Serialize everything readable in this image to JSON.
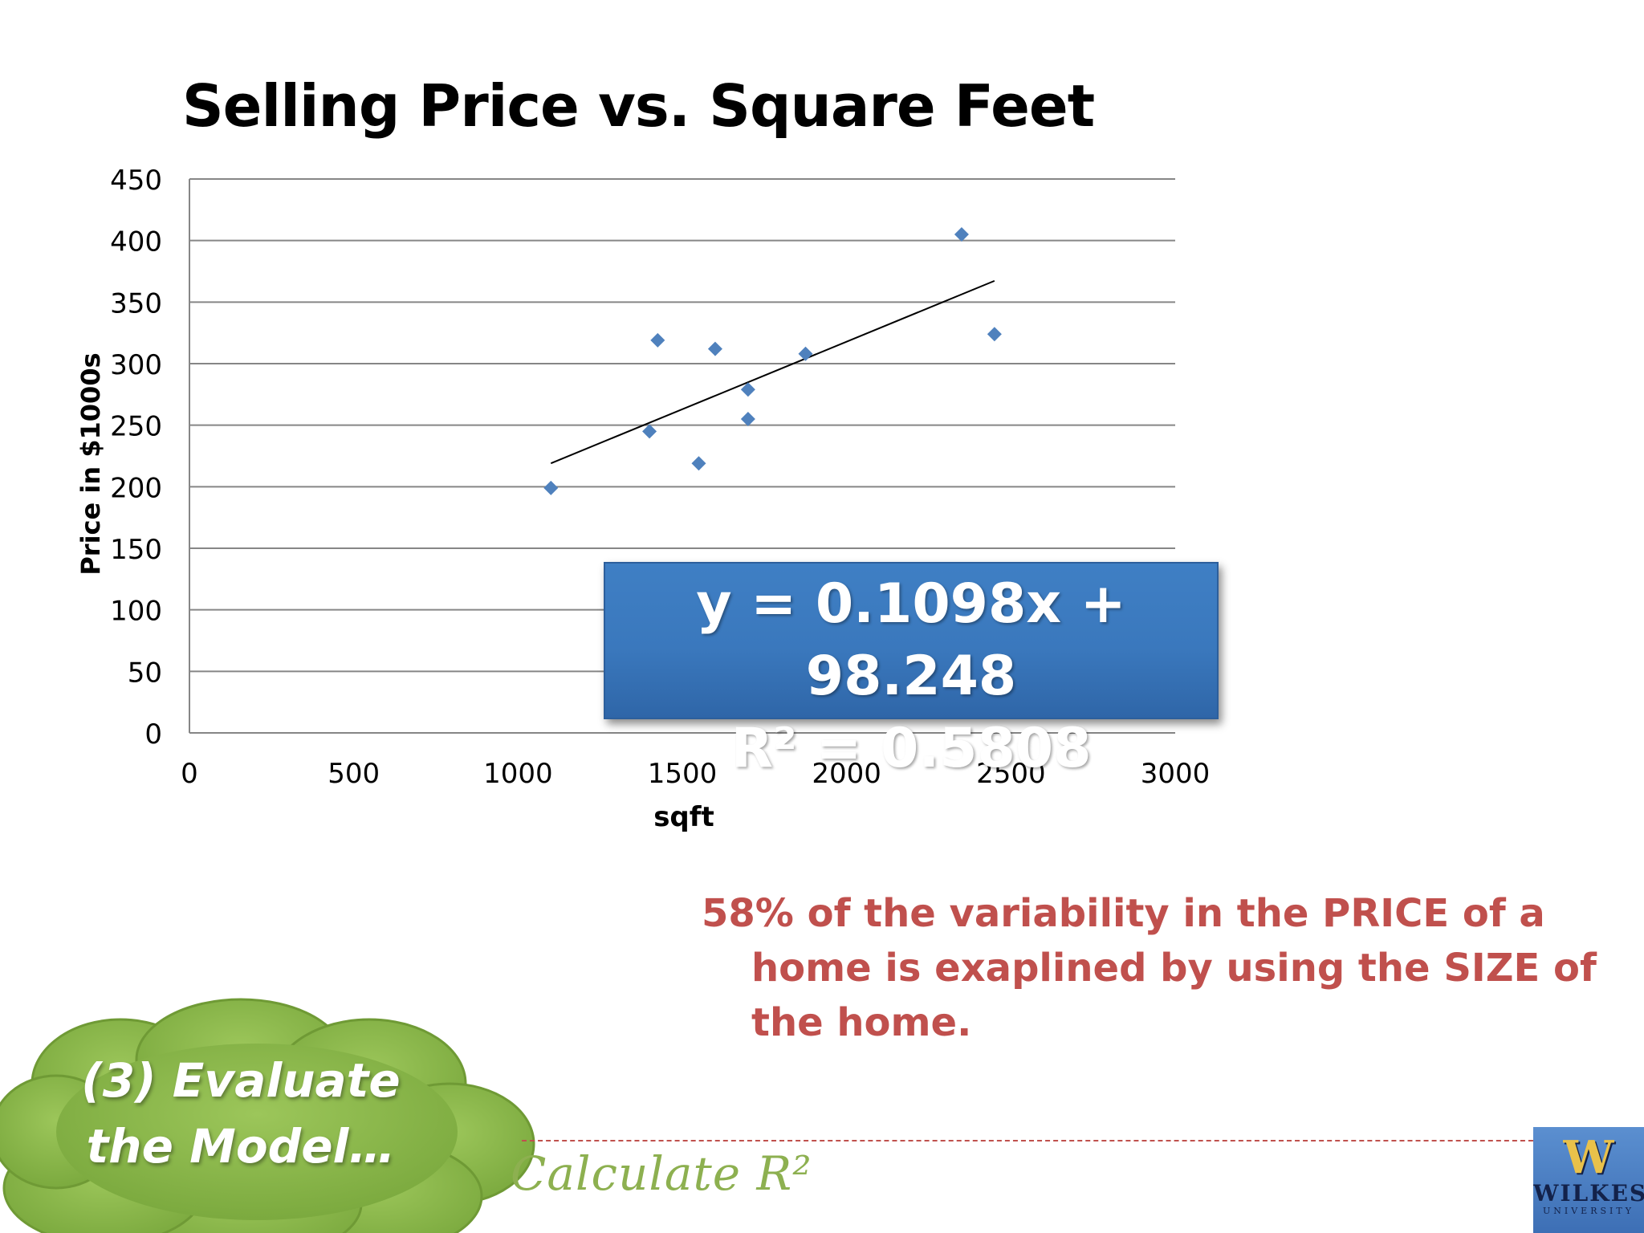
{
  "chart_data": {
    "type": "scatter",
    "title": "Selling Price vs. Square Feet",
    "xlabel": "sqft",
    "ylabel": "Price in $1000s",
    "xlim": [
      0,
      3000
    ],
    "ylim": [
      0,
      450
    ],
    "x_ticks": [
      "0",
      "500",
      "1000",
      "1500",
      "2000",
      "2500",
      "3000"
    ],
    "y_ticks": [
      "0",
      "50",
      "100",
      "150",
      "200",
      "250",
      "300",
      "350",
      "400",
      "450"
    ],
    "grid": "horizontal",
    "legend": "none",
    "points": [
      {
        "x": 1100,
        "y": 199
      },
      {
        "x": 1400,
        "y": 245
      },
      {
        "x": 1425,
        "y": 319
      },
      {
        "x": 1550,
        "y": 219
      },
      {
        "x": 1600,
        "y": 312
      },
      {
        "x": 1700,
        "y": 279
      },
      {
        "x": 1700,
        "y": 255
      },
      {
        "x": 1875,
        "y": 308
      },
      {
        "x": 2350,
        "y": 405
      },
      {
        "x": 2450,
        "y": 324
      }
    ],
    "trendline": {
      "slope": 0.1098,
      "intercept": 98.248,
      "x_range": [
        1100,
        2450
      ]
    },
    "annotation": {
      "equation": "y = 0.1098x + 98.248",
      "r_squared": "R² = 0.5808"
    },
    "colors": {
      "marker": "#4f81bd",
      "trendline": "#000000",
      "grid": "#868686"
    }
  },
  "explanation": "58% of the variability in the PRICE of a home is exaplined by using the SIZE of the home.",
  "cloud_label_line1": "(3) Evaluate",
  "cloud_label_line2": "the Model…",
  "calculate_label": "Calculate R²",
  "logo": {
    "line1": "WILKES",
    "line2": "UNIVERSITY"
  },
  "colors": {
    "accent_red": "#c0504d",
    "cloud_green": "#8db84a",
    "eq_box_blue": "#3a78bd"
  }
}
